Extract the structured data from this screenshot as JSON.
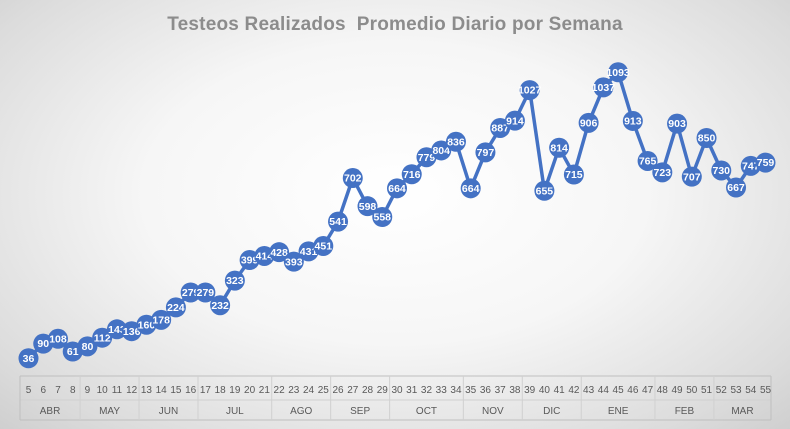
{
  "chart_data": {
    "type": "line",
    "title": "Testeos Realizados  Promedio Diario por Semana",
    "xlabel": "",
    "ylabel": "",
    "grid": false,
    "legend": "none",
    "line_color": "#4472C4",
    "marker_color": "#4472C4",
    "label_color": "#ffffff",
    "x": [
      5,
      6,
      7,
      8,
      9,
      10,
      11,
      12,
      13,
      14,
      15,
      16,
      17,
      18,
      19,
      20,
      21,
      22,
      23,
      24,
      25,
      26,
      27,
      28,
      29,
      30,
      31,
      32,
      33,
      34,
      35,
      36,
      37,
      38,
      39,
      40,
      41,
      42,
      43,
      44,
      45,
      46,
      47,
      48,
      49,
      50,
      51,
      52,
      53,
      54,
      55
    ],
    "values": [
      36,
      90,
      108,
      61,
      80,
      112,
      143,
      136,
      160,
      178,
      224,
      279,
      279,
      232,
      323,
      399,
      414,
      428,
      393,
      431,
      451,
      541,
      702,
      598,
      558,
      664,
      716,
      779,
      804,
      836,
      664,
      797,
      887,
      914,
      1027,
      655,
      814,
      715,
      906,
      1037,
      1093,
      913,
      765,
      723,
      903,
      707,
      850,
      730,
      667,
      747,
      759
    ],
    "months": [
      {
        "label": "ABR",
        "start": 5,
        "end": 8
      },
      {
        "label": "MAY",
        "start": 9,
        "end": 12
      },
      {
        "label": "JUN",
        "start": 13,
        "end": 16
      },
      {
        "label": "JUL",
        "start": 17,
        "end": 21
      },
      {
        "label": "AGO",
        "start": 22,
        "end": 25
      },
      {
        "label": "SEP",
        "start": 26,
        "end": 29
      },
      {
        "label": "OCT",
        "start": 30,
        "end": 34
      },
      {
        "label": "NOV",
        "start": 35,
        "end": 38
      },
      {
        "label": "DIC",
        "start": 39,
        "end": 42
      },
      {
        "label": "ENE",
        "start": 43,
        "end": 47
      },
      {
        "label": "FEB",
        "start": 48,
        "end": 51
      },
      {
        "label": "MAR",
        "start": 52,
        "end": 55
      }
    ]
  }
}
